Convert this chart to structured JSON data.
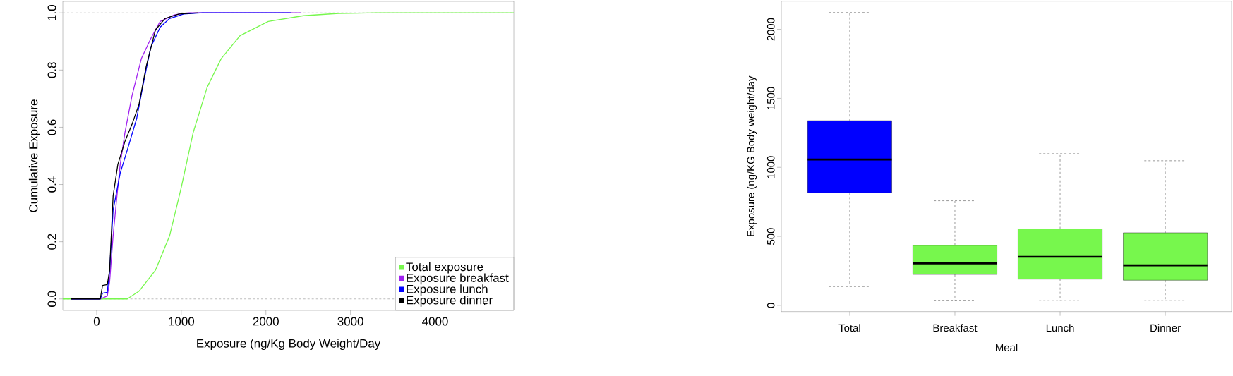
{
  "chart_data": [
    {
      "type": "line",
      "xlabel": "Exposure (ng/Kg Body Weight/Day",
      "ylabel": "Cumulative Exposure",
      "xlim": [
        -400,
        4930
      ],
      "ylim": [
        -0.04,
        1.04
      ],
      "xticks": [
        0,
        1000,
        2000,
        3000,
        4000
      ],
      "yticks": [
        {
          "value": 0,
          "label": "0.0"
        },
        {
          "value": 0.2,
          "label": "0.2"
        },
        {
          "value": 0.4,
          "label": "0.4"
        },
        {
          "value": 0.6,
          "label": "0.6"
        },
        {
          "value": 0.8,
          "label": "0.8"
        },
        {
          "value": 1,
          "label": "1.0"
        }
      ],
      "legend": "bottom right",
      "marker": "none",
      "line_style": "solid",
      "ref_lines": [
        {
          "axis": "y",
          "value": 0,
          "color": "#bebebe",
          "line_style": "dashed"
        },
        {
          "axis": "y",
          "value": 1,
          "color": "#bebebe",
          "line_style": "dashed"
        }
      ],
      "series": [
        {
          "name": "Total  exposure",
          "color": "#77f74d",
          "x": [
            -400,
            361,
            500,
            694,
            861,
            1000,
            1139,
            1306,
            1472,
            1694,
            2028,
            2444,
            2861,
            3300,
            4930
          ],
          "values": [
            0,
            0,
            0.027,
            0.1,
            0.22,
            0.39,
            0.58,
            0.74,
            0.84,
            0.92,
            0.97,
            0.99,
            0.998,
            1,
            1
          ]
        },
        {
          "name": "Exposure breakfast",
          "color": "#a020f0",
          "x": [
            -300,
            42,
            125,
            153,
            194,
            236,
            278,
            333,
            417,
            528,
            639,
            750,
            917,
            1083,
            2420
          ],
          "values": [
            0,
            0,
            0.01,
            0.06,
            0.22,
            0.35,
            0.47,
            0.58,
            0.71,
            0.84,
            0.91,
            0.97,
            0.993,
            1,
            1
          ]
        },
        {
          "name": "Exposure lunch",
          "color": "#0000ff",
          "x": [
            -300,
            42,
            69,
            125,
            153,
            194,
            278,
            361,
            472,
            556,
            639,
            750,
            861,
            1028,
            1250,
            2300
          ],
          "values": [
            0,
            0,
            0.02,
            0.023,
            0.1,
            0.31,
            0.44,
            0.52,
            0.63,
            0.76,
            0.88,
            0.95,
            0.98,
            0.996,
            1,
            1
          ]
        },
        {
          "name": "Exposure dinner",
          "color": "#000000",
          "x": [
            -300,
            42,
            69,
            125,
            153,
            194,
            250,
            333,
            417,
            500,
            583,
            694,
            806,
            972,
            1200
          ],
          "values": [
            0,
            0,
            0.047,
            0.05,
            0.1,
            0.36,
            0.47,
            0.55,
            0.61,
            0.68,
            0.81,
            0.94,
            0.98,
            0.996,
            1
          ]
        }
      ]
    },
    {
      "type": "box",
      "xlabel": "Meal",
      "ylabel": "Exposure (ng/KG Body weight/day",
      "categories": [
        "Total",
        "Breakfast",
        "Lunch",
        "Dinner"
      ],
      "colors": [
        "#0000ff",
        "#77f74d",
        "#77f74d",
        "#77f74d"
      ],
      "ylim": [
        -45,
        2204
      ],
      "yticks": [
        0,
        500,
        1000,
        1500,
        2000
      ],
      "boxes": [
        {
          "low": 136,
          "q1": 815,
          "median": 1057,
          "q3": 1338,
          "high": 2122
        },
        {
          "low": 37,
          "q1": 224,
          "median": 304,
          "q3": 435,
          "high": 758
        },
        {
          "low": 34,
          "q1": 190,
          "median": 352,
          "q3": 554,
          "high": 1099
        },
        {
          "low": 34,
          "q1": 182,
          "median": 290,
          "q3": 526,
          "high": 1048
        }
      ]
    }
  ]
}
